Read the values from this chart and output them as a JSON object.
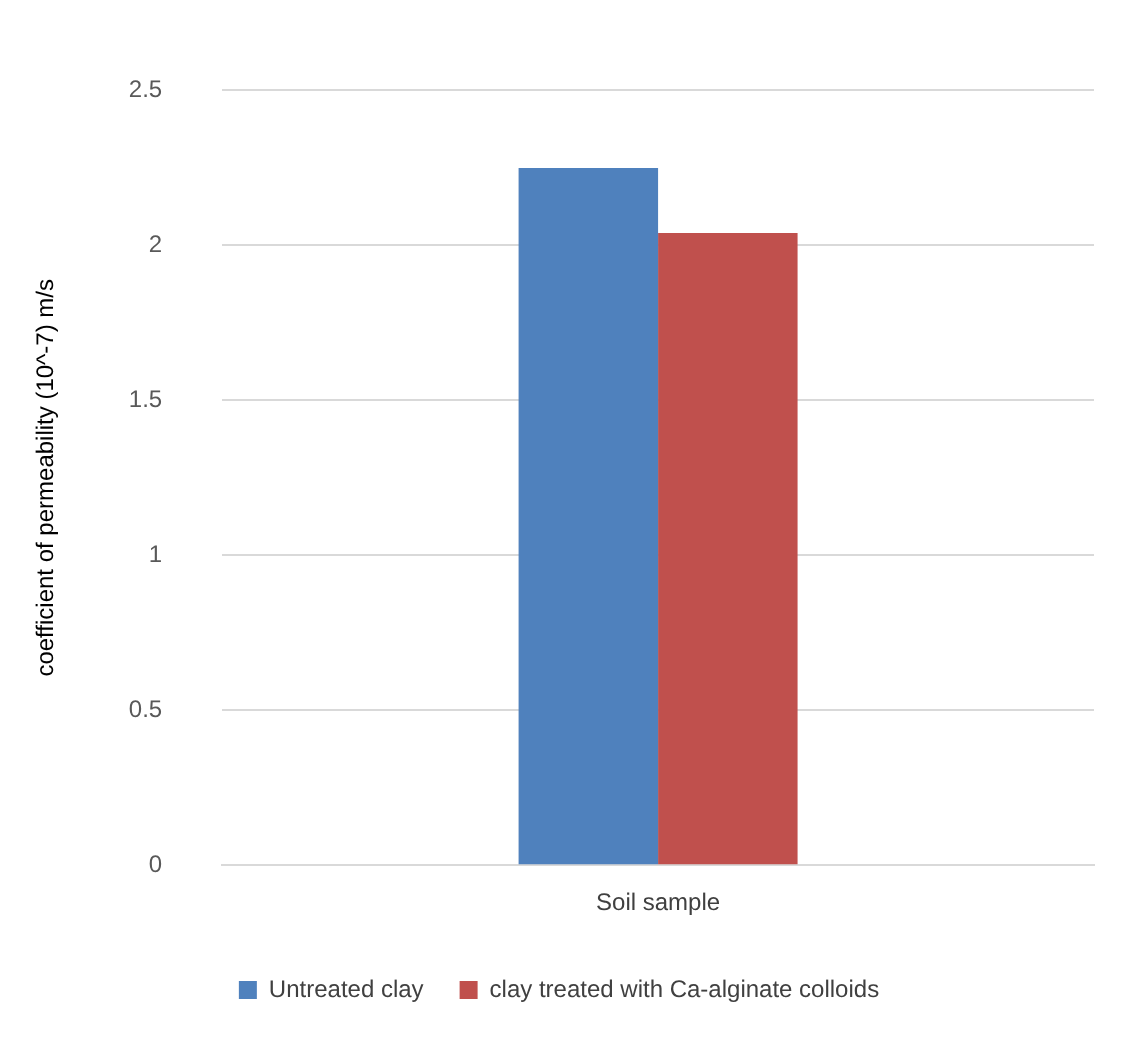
{
  "chart_data": {
    "type": "bar",
    "ylabel": "coefficient of permeability (10^-7) m/s",
    "categories": [
      "Soil sample"
    ],
    "series": [
      {
        "name": "Untreated clay",
        "color": "#4f81bd",
        "values": [
          2.25
        ]
      },
      {
        "name": "clay treated with Ca-alginate colloids",
        "color": "#c0504d",
        "values": [
          2.04
        ]
      }
    ],
    "ylim": [
      0,
      2.5
    ],
    "yticks": [
      0,
      0.5,
      1,
      1.5,
      2,
      2.5
    ],
    "grid": "y",
    "legend": "bottom"
  }
}
